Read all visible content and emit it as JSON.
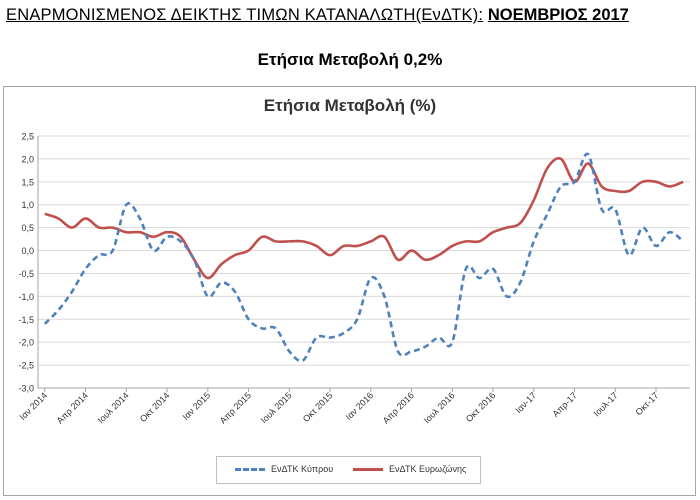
{
  "header": {
    "title_main": "ΕΝΑΡΜΟΝΙΣΜΕΝΟΣ ΔΕΙΚΤΗΣ ΤΙΜΩΝ ΚΑΤΑΝΑΛΩΤΗ(ΕνΔΤΚ):",
    "title_date": "ΝΟΕΜΒΡΙΟΣ 2017",
    "subtitle": "Ετήσια Μεταβολή 0,2%"
  },
  "chart_data": {
    "type": "line",
    "title": "Ετήσια Μεταβολή (%)",
    "xlabel": "",
    "ylabel": "",
    "ylim": [
      -3.0,
      2.5
    ],
    "yticks": [
      "2,5",
      "2,0",
      "1,5",
      "1,0",
      "0,5",
      "0,0",
      "-0,5",
      "-1,0",
      "-1,5",
      "-2,0",
      "-2,5",
      "-3,0"
    ],
    "ytick_values": [
      2.5,
      2.0,
      1.5,
      1.0,
      0.5,
      0.0,
      -0.5,
      -1.0,
      -1.5,
      -2.0,
      -2.5,
      -3.0
    ],
    "grid": true,
    "legend_position": "bottom",
    "x_tick_labels": [
      {
        "index": 0,
        "label": "Ιαν 2014"
      },
      {
        "index": 3,
        "label": "Απρ 2014"
      },
      {
        "index": 6,
        "label": "Ιουλ 2014"
      },
      {
        "index": 9,
        "label": "Οκτ 2014"
      },
      {
        "index": 12,
        "label": "Ιαν 2015"
      },
      {
        "index": 15,
        "label": "Απρ 2015"
      },
      {
        "index": 18,
        "label": "Ιουλ 2015"
      },
      {
        "index": 21,
        "label": "Οκτ 2015"
      },
      {
        "index": 24,
        "label": "Ιαν 2016"
      },
      {
        "index": 27,
        "label": "Απρ 2016"
      },
      {
        "index": 30,
        "label": "Ιουλ 2016"
      },
      {
        "index": 33,
        "label": "Οκτ 2016"
      },
      {
        "index": 36,
        "label": "Ιαν-17"
      },
      {
        "index": 39,
        "label": "Απρ-17"
      },
      {
        "index": 42,
        "label": "Ιουλ-17"
      },
      {
        "index": 45,
        "label": "Οκτ-17"
      }
    ],
    "series": [
      {
        "name": "ΕνΔΤΚ Κύπρου",
        "color": "#4f81bd",
        "style": "dashed",
        "values": [
          -1.6,
          -1.3,
          -0.9,
          -0.4,
          -0.1,
          0.0,
          1.0,
          0.7,
          0.0,
          0.3,
          0.2,
          -0.2,
          -1.0,
          -0.7,
          -0.9,
          -1.5,
          -1.7,
          -1.7,
          -2.2,
          -2.4,
          -1.9,
          -1.9,
          -1.8,
          -1.5,
          -0.6,
          -1.0,
          -2.2,
          -2.2,
          -2.1,
          -1.9,
          -2.0,
          -0.4,
          -0.6,
          -0.4,
          -1.0,
          -0.7,
          0.2,
          0.8,
          1.4,
          1.5,
          2.1,
          0.9,
          0.9,
          -0.1,
          0.5,
          0.1,
          0.4,
          0.2
        ]
      },
      {
        "name": "ΕνΔΤΚ Ευρωζώνης",
        "color": "#c0504d",
        "style": "solid",
        "values": [
          0.8,
          0.7,
          0.5,
          0.7,
          0.5,
          0.5,
          0.4,
          0.4,
          0.3,
          0.4,
          0.3,
          -0.2,
          -0.6,
          -0.3,
          -0.1,
          0.0,
          0.3,
          0.2,
          0.2,
          0.2,
          0.1,
          -0.1,
          0.1,
          0.1,
          0.2,
          0.3,
          -0.2,
          0.0,
          -0.2,
          -0.1,
          0.1,
          0.2,
          0.2,
          0.4,
          0.5,
          0.6,
          1.1,
          1.8,
          2.0,
          1.5,
          1.9,
          1.4,
          1.3,
          1.3,
          1.5,
          1.5,
          1.4,
          1.5
        ]
      }
    ]
  }
}
